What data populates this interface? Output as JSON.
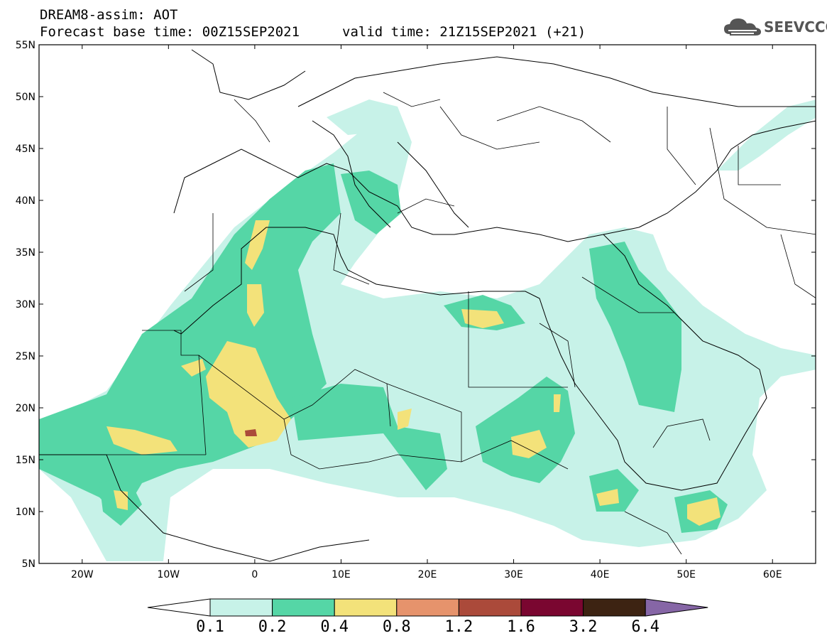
{
  "header": {
    "title": "DREAM8-assim: AOT",
    "base_time": "Forecast base time: 00Z15SEP2021",
    "valid_time": "valid time: 21Z15SEP2021 (+21)",
    "logo": "SEEVCCC"
  },
  "axes": {
    "lat_labels": [
      "55N",
      "50N",
      "45N",
      "40N",
      "35N",
      "30N",
      "25N",
      "20N",
      "15N",
      "10N",
      "5N"
    ],
    "lon_labels": [
      "20W",
      "10W",
      "0",
      "10E",
      "20E",
      "30E",
      "40E",
      "50E",
      "60E"
    ]
  },
  "colorbar": {
    "labels": [
      "0.1",
      "0.2",
      "0.4",
      "0.8",
      "1.2",
      "1.6",
      "3.2",
      "6.4"
    ],
    "colors": [
      "#ffffff",
      "#c7f2e8",
      "#55d6a6",
      "#f3e27a",
      "#e6936c",
      "#ab4a3a",
      "#7a0630",
      "#3d2312",
      "#8666a6"
    ]
  },
  "map": {
    "colors": {
      "c1": "#c7f2e8",
      "c2": "#55d6a6",
      "c3": "#f3e27a",
      "c4": "#e6936c",
      "c5": "#ab4a3a"
    },
    "extent": {
      "lon": [
        -25,
        65
      ],
      "lat": [
        5,
        55
      ]
    }
  }
}
